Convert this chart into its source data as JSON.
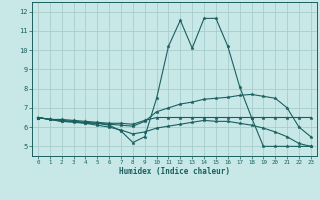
{
  "xlabel": "Humidex (Indice chaleur)",
  "bg_color": "#c8e8e8",
  "grid_color": "#a8cccc",
  "line_color": "#1a5f5f",
  "xlim": [
    -0.5,
    23.5
  ],
  "ylim": [
    4.5,
    12.5
  ],
  "yticks": [
    5,
    6,
    7,
    8,
    9,
    10,
    11,
    12
  ],
  "xticks": [
    0,
    1,
    2,
    3,
    4,
    5,
    6,
    7,
    8,
    9,
    10,
    11,
    12,
    13,
    14,
    15,
    16,
    17,
    18,
    19,
    20,
    21,
    22,
    23
  ],
  "line1_x": [
    0,
    1,
    2,
    3,
    4,
    5,
    6,
    7,
    8,
    9,
    10,
    11,
    12,
    13,
    14,
    15,
    16,
    17,
    18,
    19,
    20,
    21,
    22,
    23
  ],
  "line1_y": [
    6.5,
    6.4,
    6.3,
    6.3,
    6.2,
    6.2,
    6.1,
    5.8,
    5.2,
    5.5,
    7.5,
    10.2,
    11.55,
    10.1,
    11.65,
    11.65,
    10.2,
    8.1,
    6.5,
    5.0,
    5.0,
    5.0,
    5.0,
    5.0
  ],
  "line2_x": [
    0,
    1,
    2,
    3,
    4,
    5,
    6,
    7,
    8,
    9,
    10,
    11,
    12,
    13,
    14,
    15,
    16,
    17,
    18,
    19,
    20,
    21,
    22,
    23
  ],
  "line2_y": [
    6.5,
    6.4,
    6.4,
    6.35,
    6.3,
    6.25,
    6.2,
    6.2,
    6.15,
    6.35,
    6.5,
    6.5,
    6.5,
    6.5,
    6.5,
    6.5,
    6.5,
    6.5,
    6.5,
    6.5,
    6.5,
    6.5,
    6.5,
    6.5
  ],
  "line3_x": [
    0,
    1,
    2,
    3,
    4,
    5,
    6,
    7,
    8,
    9,
    10,
    11,
    12,
    13,
    14,
    15,
    16,
    17,
    18,
    19,
    20,
    21,
    22,
    23
  ],
  "line3_y": [
    6.5,
    6.4,
    6.35,
    6.3,
    6.25,
    6.2,
    6.15,
    6.1,
    6.05,
    6.3,
    6.8,
    7.0,
    7.2,
    7.3,
    7.45,
    7.5,
    7.55,
    7.65,
    7.7,
    7.6,
    7.5,
    7.0,
    6.0,
    5.5
  ],
  "line4_x": [
    0,
    1,
    2,
    3,
    4,
    5,
    6,
    7,
    8,
    9,
    10,
    11,
    12,
    13,
    14,
    15,
    16,
    17,
    18,
    19,
    20,
    21,
    22,
    23
  ],
  "line4_y": [
    6.5,
    6.4,
    6.3,
    6.25,
    6.2,
    6.1,
    6.0,
    5.85,
    5.65,
    5.75,
    5.95,
    6.05,
    6.15,
    6.25,
    6.35,
    6.3,
    6.3,
    6.2,
    6.1,
    5.95,
    5.75,
    5.5,
    5.15,
    5.0
  ]
}
